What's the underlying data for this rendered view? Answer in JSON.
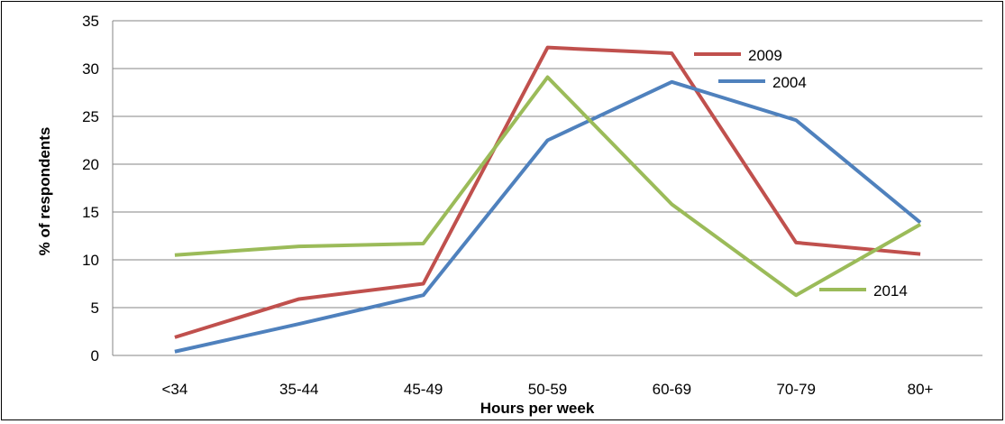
{
  "chart_data": {
    "type": "line",
    "title": "",
    "xlabel": "Hours per week",
    "ylabel": "% of respondents",
    "categories": [
      "<34",
      "35-44",
      "45-49",
      "50-59",
      "60-69",
      "70-79",
      "80+"
    ],
    "ylim": [
      0,
      35
    ],
    "yticks": [
      "0",
      "5",
      "10",
      "15",
      "20",
      "25",
      "30",
      "35"
    ],
    "grid": true,
    "series": [
      {
        "name": "2009",
        "color": "#c0504d",
        "values": [
          1.9,
          5.9,
          7.5,
          32.2,
          31.6,
          11.8,
          10.6
        ]
      },
      {
        "name": "2004",
        "color": "#4f81bd",
        "values": [
          0.4,
          3.3,
          6.3,
          22.5,
          28.6,
          24.6,
          13.9
        ]
      },
      {
        "name": "2014",
        "color": "#9bbb59",
        "values": [
          10.5,
          11.4,
          11.7,
          29.1,
          15.8,
          6.3,
          13.7
        ]
      }
    ]
  }
}
